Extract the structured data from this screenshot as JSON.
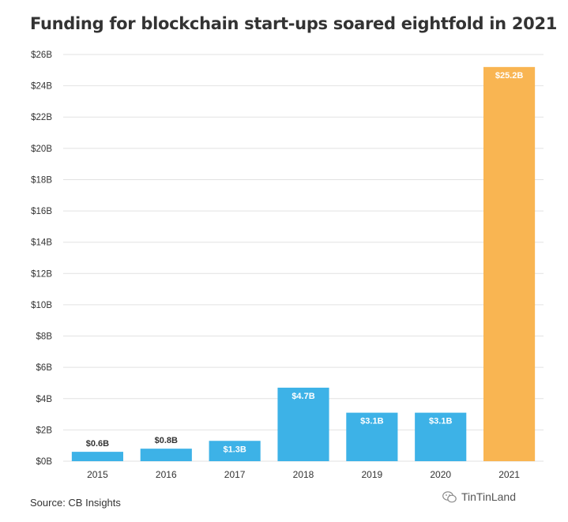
{
  "chart_data": {
    "type": "bar",
    "title": "Funding for blockchain start-ups soared eightfold in 2021",
    "categories": [
      "2015",
      "2016",
      "2017",
      "2018",
      "2019",
      "2020",
      "2021"
    ],
    "values": [
      0.6,
      0.8,
      1.3,
      4.7,
      3.1,
      3.1,
      25.2
    ],
    "data_labels": [
      "$0.6B",
      "$0.8B",
      "$1.3B",
      "$4.7B",
      "$3.1B",
      "$3.1B",
      "$25.2B"
    ],
    "y_ticks": [
      0,
      2,
      4,
      6,
      8,
      10,
      12,
      14,
      16,
      18,
      20,
      22,
      24,
      26
    ],
    "y_tick_labels": [
      "$0B",
      "$2B",
      "$4B",
      "$6B",
      "$8B",
      "$10B",
      "$12B",
      "$14B",
      "$16B",
      "$18B",
      "$20B",
      "$22B",
      "$24B",
      "$26B"
    ],
    "ylim": [
      0,
      26
    ],
    "xlabel": "",
    "ylabel": "",
    "grid": true,
    "colors": {
      "default": "#3db2e7",
      "highlight": "#f9b552",
      "grid": "#e2e2e2"
    },
    "highlight_category": "2021"
  },
  "footer": {
    "source": "Source: CB Insights",
    "brand": "TinTinLand",
    "brand_icon": "wechat-icon"
  }
}
